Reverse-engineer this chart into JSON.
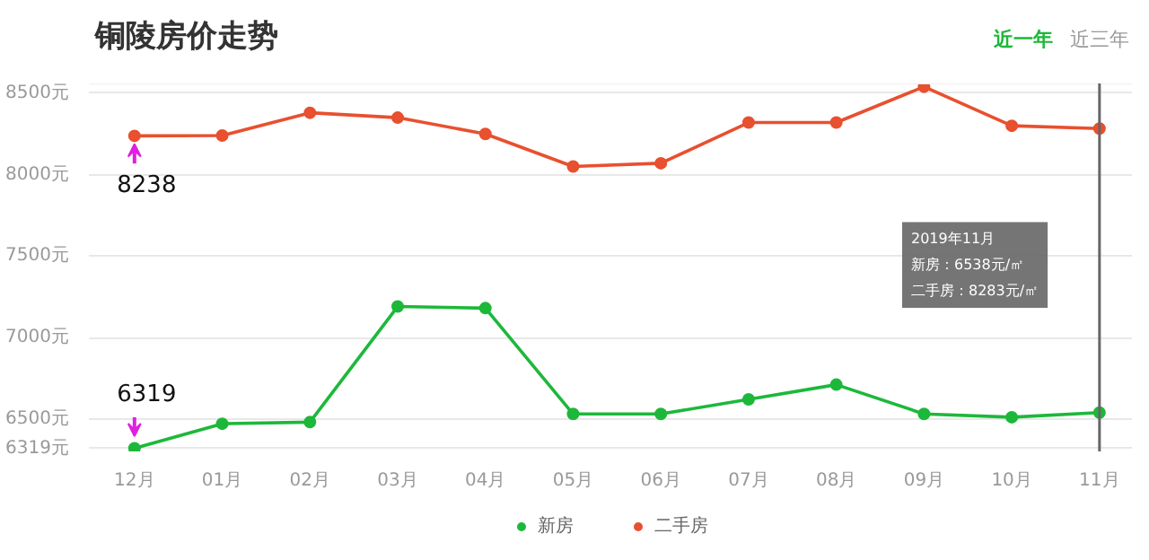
{
  "chart_data": {
    "type": "line",
    "title": "铜陵房价走势",
    "categories": [
      "12月",
      "01月",
      "02月",
      "03月",
      "04月",
      "05月",
      "06月",
      "07月",
      "08月",
      "09月",
      "10月",
      "11月"
    ],
    "series": [
      {
        "name": "新房",
        "color": "#1db83a",
        "values": [
          6319,
          6470,
          6480,
          7190,
          7180,
          6530,
          6530,
          6620,
          6710,
          6530,
          6510,
          6538
        ]
      },
      {
        "name": "二手房",
        "color": "#e8502f",
        "values": [
          8238,
          8240,
          8380,
          8350,
          8250,
          8050,
          8070,
          8320,
          8320,
          8540,
          8300,
          8283
        ]
      }
    ],
    "ylim": [
      6300,
      8560
    ],
    "yticks": [
      {
        "value": 6319,
        "label": "6319元"
      },
      {
        "value": 6500,
        "label": "6500元"
      },
      {
        "value": 7000,
        "label": "7000元"
      },
      {
        "value": 7500,
        "label": "7500元"
      },
      {
        "value": 8000,
        "label": "8000元"
      },
      {
        "value": 8500,
        "label": "8500元"
      }
    ],
    "ref_lines": [
      {
        "axis": "x",
        "value": "11月",
        "color": "#666666"
      }
    ],
    "annotations": [
      "近一年",
      "近三年",
      "2019年11月",
      "新房：6538元/㎡",
      "二手房：8283元/㎡",
      {
        "text": "8238",
        "x": "12月",
        "y": 8238
      },
      {
        "text": "6319",
        "x": "12月",
        "y": 6319
      }
    ],
    "grid": "y",
    "legend": "bottom",
    "marker": "circle",
    "line_style": "solid"
  }
}
